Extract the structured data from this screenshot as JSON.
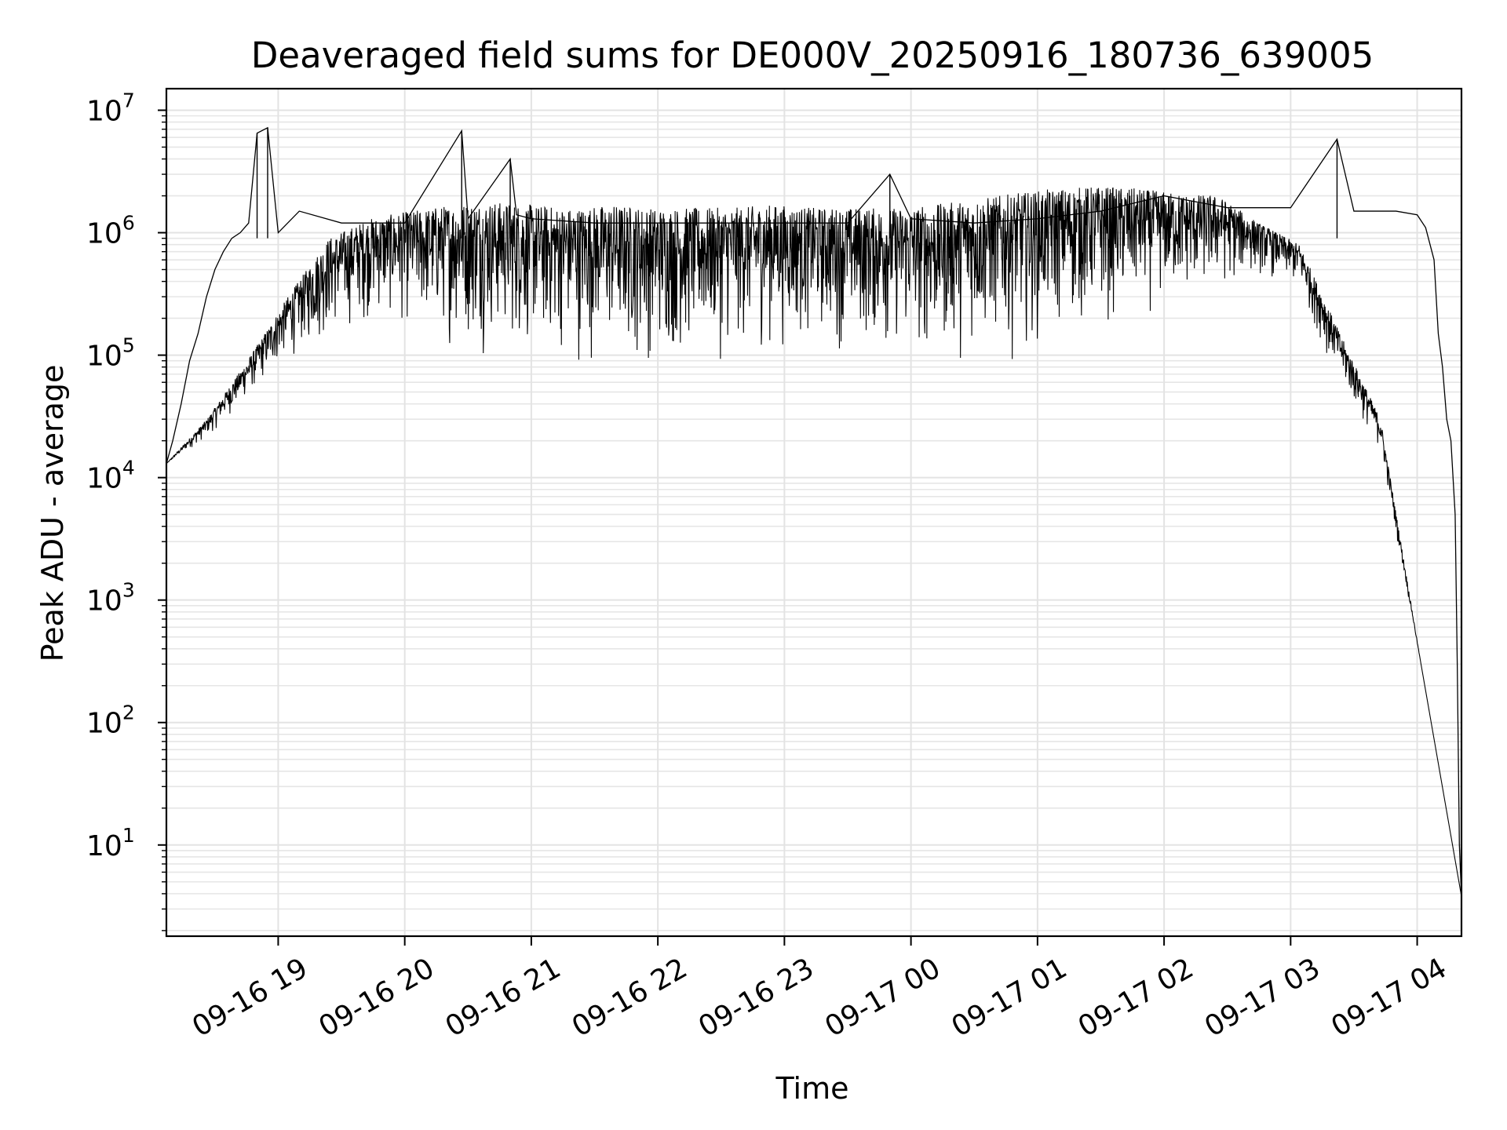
{
  "chart_data": {
    "type": "line",
    "title": "Deaveraged field sums for DE000V_20250916_180736_639005",
    "xlabel": "Time",
    "ylabel": "Peak ADU - average",
    "yscale": "log",
    "ylim": [
      1.8,
      15000000
    ],
    "xlim": [
      "2025-09-16 18:07",
      "2025-09-17 04:21"
    ],
    "grid": true,
    "x_ticks": [
      "09-16 19",
      "09-16 20",
      "09-16 21",
      "09-16 22",
      "09-16 23",
      "09-17 00",
      "09-17 01",
      "09-17 02",
      "09-17 03",
      "09-17 04"
    ],
    "y_ticks": [
      {
        "base": "10",
        "exp": "1"
      },
      {
        "base": "10",
        "exp": "2"
      },
      {
        "base": "10",
        "exp": "3"
      },
      {
        "base": "10",
        "exp": "4"
      },
      {
        "base": "10",
        "exp": "5"
      },
      {
        "base": "10",
        "exp": "6"
      },
      {
        "base": "10",
        "exp": "7"
      }
    ],
    "line_color": "#000000",
    "series": [
      {
        "x": [
          "2025-09-16 18:07",
          "2025-09-16 18:10",
          "2025-09-16 18:14",
          "2025-09-16 18:18",
          "2025-09-16 18:22",
          "2025-09-16 18:26",
          "2025-09-16 18:30",
          "2025-09-16 18:34",
          "2025-09-16 18:38",
          "2025-09-16 18:42",
          "2025-09-16 18:46",
          "2025-09-16 18:50",
          "2025-09-16 18:55",
          "2025-09-16 19:00",
          "2025-09-16 19:10",
          "2025-09-16 19:30",
          "2025-09-16 20:00",
          "2025-09-16 20:27",
          "2025-09-16 20:30",
          "2025-09-16 20:50",
          "2025-09-16 20:53",
          "2025-09-16 21:00",
          "2025-09-16 21:30",
          "2025-09-16 22:00",
          "2025-09-16 22:30",
          "2025-09-16 23:00",
          "2025-09-16 23:30",
          "2025-09-16 23:50",
          "2025-09-17 00:00",
          "2025-09-17 00:30",
          "2025-09-17 01:00",
          "2025-09-17 01:30",
          "2025-09-17 02:00",
          "2025-09-17 02:30",
          "2025-09-17 03:00",
          "2025-09-17 03:22",
          "2025-09-17 03:30",
          "2025-09-17 03:50",
          "2025-09-17 04:00",
          "2025-09-17 04:04",
          "2025-09-17 04:08",
          "2025-09-17 04:10",
          "2025-09-17 04:12",
          "2025-09-17 04:14",
          "2025-09-17 04:16",
          "2025-09-17 04:18",
          "2025-09-17 04:19",
          "2025-09-17 04:20",
          "2025-09-17 04:21"
        ],
        "y": [
          13000,
          20000,
          40000,
          90000,
          150000,
          300000,
          500000,
          700000,
          900000,
          1000000,
          1200000,
          6500000,
          7200000,
          1000000,
          1500000,
          1200000,
          1200000,
          6800000,
          1300000,
          4000000,
          1400000,
          1300000,
          1200000,
          1200000,
          1200000,
          1200000,
          1200000,
          3000000,
          1300000,
          1200000,
          1300000,
          1500000,
          2000000,
          1600000,
          1600000,
          5800000,
          1500000,
          1500000,
          1400000,
          1100000,
          600000,
          150000,
          80000,
          30000,
          20000,
          5000,
          300,
          10,
          3.8
        ],
        "upper_envelope": [
          13000,
          30000,
          90000,
          300000,
          900000,
          1300000,
          1500000,
          1700000,
          1800000,
          1700000,
          1600000,
          1700000,
          1600000,
          1600000,
          1600000,
          1700000,
          1600000,
          1600000,
          1600000,
          1700000,
          1900000,
          2100000,
          2300000,
          2400000,
          2300000,
          2100000,
          2000000,
          1200000,
          800000,
          150000,
          30000,
          300,
          3.8
        ],
        "lower_envelope": [
          13000,
          20000,
          40000,
          80000,
          100000,
          150000,
          120000,
          90000,
          80000,
          70000,
          65000,
          60000,
          60000,
          60000,
          70000,
          80000,
          90000,
          80000,
          70000,
          60000,
          70000,
          80000,
          100000,
          120000,
          150000,
          200000,
          250000,
          400000,
          300000,
          50000,
          15000,
          300,
          3.8
        ]
      }
    ]
  }
}
